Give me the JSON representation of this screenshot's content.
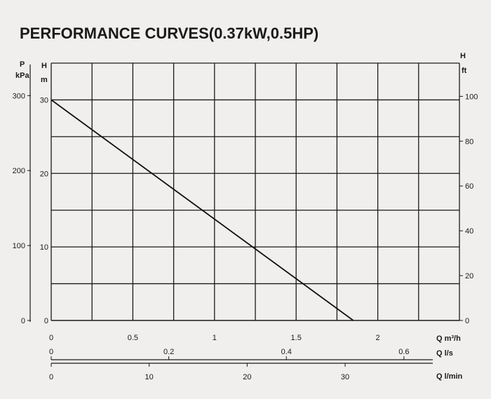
{
  "chart_data": {
    "type": "line",
    "title": "PERFORMANCE CURVES(0.37kW,0.5HP)",
    "left_axes": {
      "pressure": {
        "label": "P",
        "unit": "kPa",
        "ticks": [
          "0",
          "100",
          "200",
          "300"
        ]
      },
      "head_m": {
        "label": "H",
        "unit": "m",
        "ticks": [
          "0",
          "10",
          "20",
          "30"
        ]
      }
    },
    "right_axis": {
      "label": "H",
      "unit": "ft",
      "ticks": [
        "0",
        "20",
        "40",
        "60",
        "80",
        "100"
      ]
    },
    "x_axes": [
      {
        "label": "Q m³/h",
        "ticks": [
          "0",
          "0.5",
          "1",
          "1.5",
          "2"
        ]
      },
      {
        "label": "Q l/s",
        "ticks": [
          "0",
          "0.2",
          "0.4",
          "0.6"
        ]
      },
      {
        "label": "Q l/min",
        "ticks": [
          "0",
          "10",
          "20",
          "30"
        ]
      }
    ],
    "ylim_m": [
      0,
      35
    ],
    "xlim_m3h": [
      0,
      2.5
    ],
    "grid": true,
    "series": [
      {
        "x": [
          0,
          1.85
        ],
        "y": [
          30,
          0
        ]
      }
    ]
  }
}
